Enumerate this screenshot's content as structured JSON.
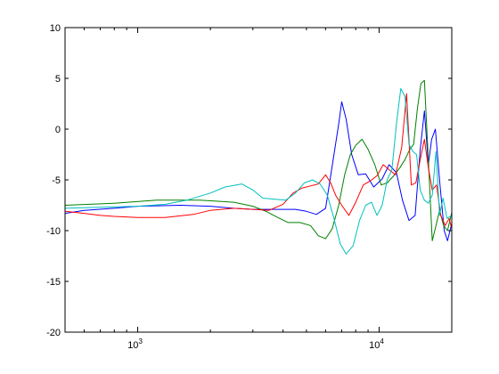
{
  "chart_data": {
    "type": "line",
    "title": "",
    "xlabel": "",
    "ylabel": "",
    "x_scale": "log",
    "xlim": [
      500,
      20000
    ],
    "ylim": [
      -20,
      10
    ],
    "grid": false,
    "legend": "none",
    "y_ticks": [
      {
        "value": -20,
        "label": "-20"
      },
      {
        "value": -15,
        "label": "-15"
      },
      {
        "value": -10,
        "label": "-10"
      },
      {
        "value": -5,
        "label": "-5"
      },
      {
        "value": 0,
        "label": "0"
      },
      {
        "value": 5,
        "label": "5"
      },
      {
        "value": 10,
        "label": "10"
      }
    ],
    "x_ticks": [
      {
        "value": 1000,
        "base": "10",
        "exp": "3"
      },
      {
        "value": 10000,
        "base": "10",
        "exp": "4"
      }
    ],
    "series": [
      {
        "color": "#0000ff",
        "x": [
          500,
          600,
          800,
          1000,
          1500,
          2000,
          2500,
          3000,
          3500,
          4000,
          4500,
          5000,
          5500,
          6000,
          6500,
          6800,
          7000,
          7300,
          7700,
          8200,
          8800,
          9500,
          10300,
          11000,
          11800,
          12500,
          13300,
          14100,
          14800,
          15400,
          16000,
          16500,
          17100,
          17800,
          18600,
          19200,
          20000
        ],
        "y": [
          -8.3,
          -8.0,
          -7.8,
          -7.6,
          -7.5,
          -7.6,
          -7.8,
          -7.9,
          -7.9,
          -7.9,
          -7.9,
          -8.1,
          -8.4,
          -7.8,
          -2.5,
          0.5,
          2.7,
          1.0,
          -2.5,
          -4.5,
          -4.4,
          -5.7,
          -4.9,
          -3.5,
          -4.3,
          -7.0,
          -9.0,
          -8.5,
          -2.0,
          1.8,
          -3.5,
          -1.0,
          0.0,
          -5.0,
          -10.0,
          -11.0,
          -9.3
        ]
      },
      {
        "color": "#008000",
        "x": [
          500,
          800,
          1200,
          1800,
          2500,
          3000,
          3400,
          3800,
          4200,
          4700,
          5200,
          5600,
          6000,
          6400,
          6800,
          7200,
          7600,
          8000,
          8500,
          9000,
          9600,
          10200,
          10800,
          11500,
          12200,
          12800,
          13400,
          13900,
          14400,
          14900,
          15400,
          16000,
          16600,
          17200,
          17800,
          18500,
          19200,
          20000
        ],
        "y": [
          -7.5,
          -7.3,
          -7.0,
          -7.0,
          -7.2,
          -7.6,
          -8.1,
          -8.7,
          -9.2,
          -9.2,
          -9.5,
          -10.5,
          -10.8,
          -9.8,
          -7.5,
          -4.5,
          -2.5,
          -1.6,
          -1.0,
          -2.0,
          -3.5,
          -5.5,
          -5.3,
          -4.6,
          -3.8,
          -3.0,
          -2.0,
          -1.5,
          2.0,
          4.5,
          4.8,
          -3.0,
          -11.0,
          -9.5,
          -8.0,
          -9.5,
          -10.0,
          -8.2
        ]
      },
      {
        "color": "#ff0000",
        "x": [
          500,
          600,
          700,
          800,
          1000,
          1300,
          1700,
          2000,
          2500,
          3000,
          3500,
          4000,
          4400,
          4800,
          5200,
          5600,
          6000,
          6300,
          6600,
          7000,
          7500,
          8000,
          8600,
          9200,
          9800,
          10400,
          11000,
          11700,
          12400,
          13000,
          13600,
          14200,
          14800,
          15400,
          16000,
          16600,
          17300,
          18000,
          18800,
          19500,
          20000
        ],
        "y": [
          -8.1,
          -8.3,
          -8.5,
          -8.6,
          -8.7,
          -8.7,
          -8.4,
          -8.0,
          -7.8,
          -7.9,
          -8.0,
          -7.4,
          -6.3,
          -5.8,
          -5.6,
          -5.4,
          -4.5,
          -5.3,
          -6.5,
          -7.5,
          -8.5,
          -7.2,
          -5.5,
          -5.1,
          -4.6,
          -3.5,
          -4.0,
          -4.5,
          -1.8,
          3.5,
          -5.5,
          -5.3,
          -3.0,
          -1.0,
          -3.8,
          -6.0,
          -5.5,
          -8.5,
          -9.5,
          -8.8,
          -9.8
        ]
      },
      {
        "color": "#00bfbf",
        "x": [
          500,
          700,
          1000,
          1300,
          1600,
          2000,
          2300,
          2700,
          3000,
          3300,
          3700,
          4100,
          4500,
          4900,
          5300,
          5700,
          6100,
          6500,
          6900,
          7300,
          7800,
          8300,
          8800,
          9300,
          9800,
          10300,
          10800,
          11300,
          11800,
          12300,
          12800,
          13300,
          13800,
          14300,
          14800,
          15400,
          16000,
          16600,
          17200,
          17800,
          18400,
          19100,
          20000
        ],
        "y": [
          -7.8,
          -7.7,
          -7.6,
          -7.4,
          -7.0,
          -6.3,
          -5.7,
          -5.4,
          -6.0,
          -6.8,
          -6.9,
          -7.0,
          -6.3,
          -5.3,
          -5.0,
          -5.4,
          -6.5,
          -8.8,
          -11.3,
          -12.3,
          -11.5,
          -9.0,
          -7.5,
          -7.2,
          -8.5,
          -7.5,
          -5.0,
          -4.0,
          0.5,
          4.0,
          3.2,
          -1.5,
          -2.2,
          -2.5,
          -6.0,
          -7.0,
          -7.3,
          -6.5,
          -2.2,
          -8.5,
          -6.8,
          -8.8,
          -8.5
        ]
      }
    ]
  }
}
